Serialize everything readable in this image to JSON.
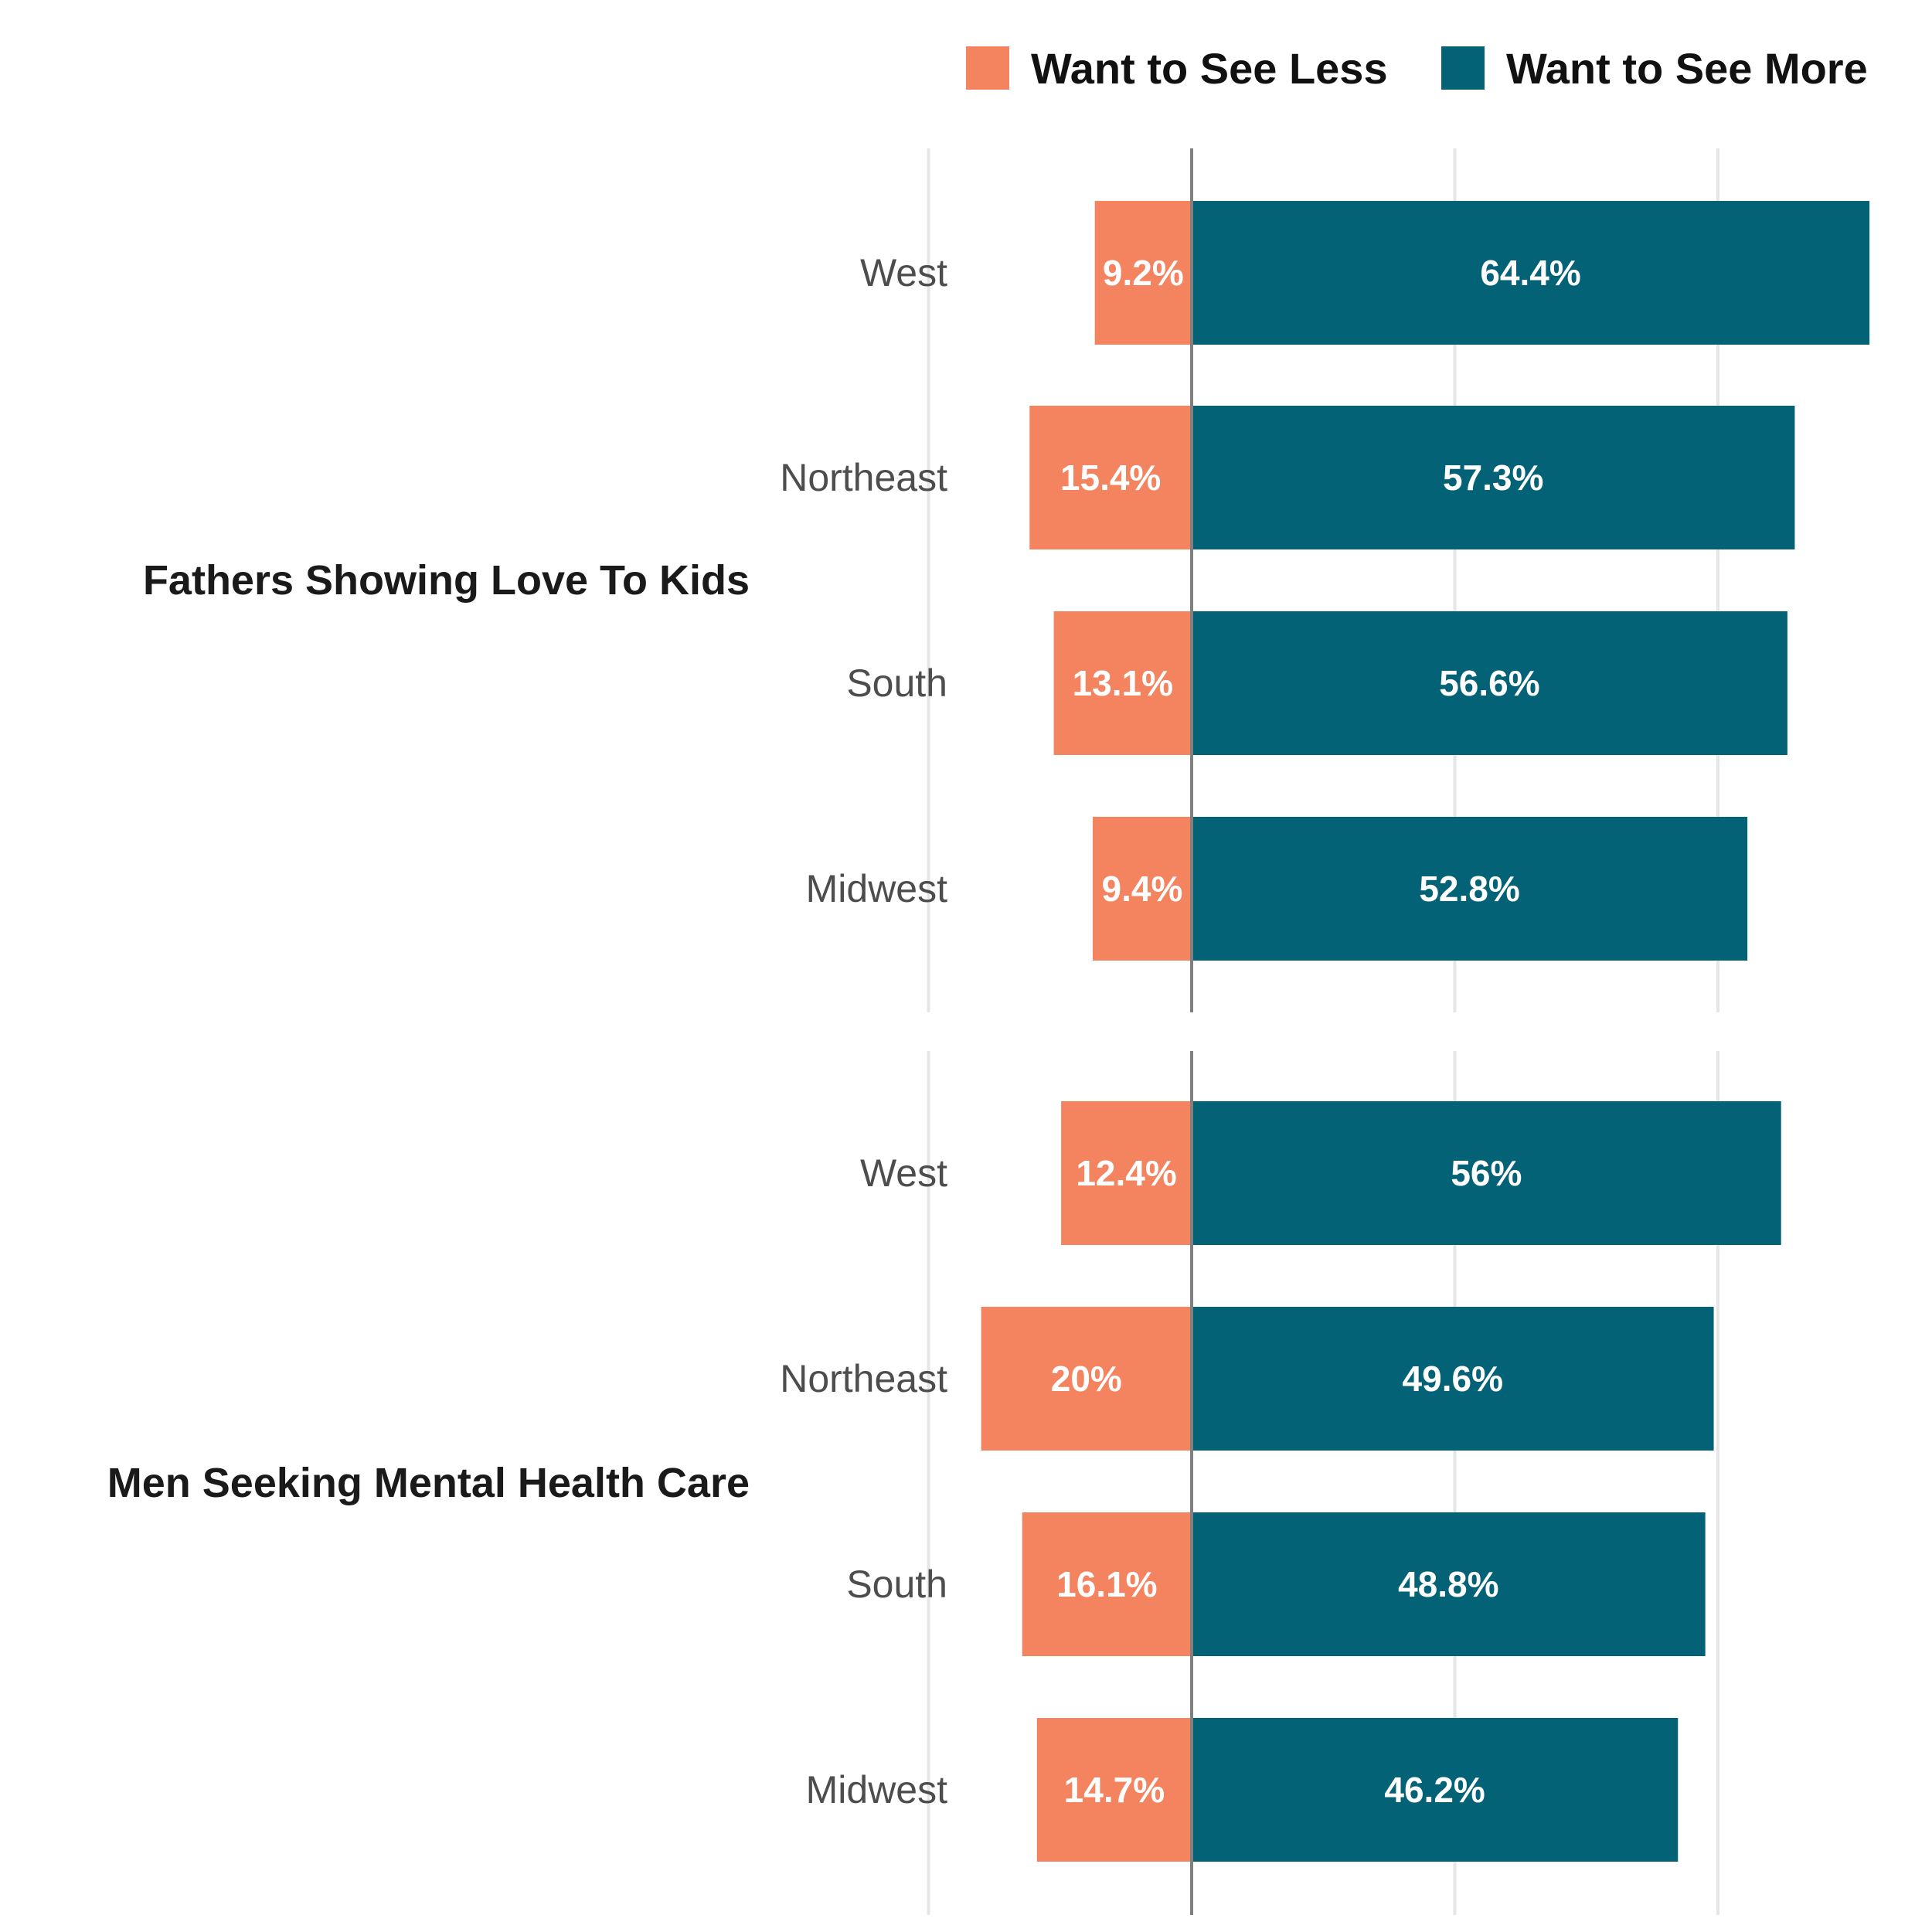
{
  "chart_data": {
    "type": "bar",
    "orientation": "horizontal-diverging",
    "legend": [
      {
        "label": "Want to See Less",
        "color": "#F4845F"
      },
      {
        "label": "Want to See More",
        "color": "#046276"
      }
    ],
    "legend_position": "top-right",
    "xlim": [
      -20,
      65
    ],
    "grid": true,
    "facets": [
      {
        "title": "Fathers Showing Love To Kids",
        "categories": [
          "West",
          "Northeast",
          "South",
          "Midwest"
        ],
        "series": [
          {
            "name": "Want to See Less",
            "values": [
              9.2,
              15.4,
              13.1,
              9.4
            ],
            "labels": [
              "9.2%",
              "15.4%",
              "13.1%",
              "9.4%"
            ]
          },
          {
            "name": "Want to See More",
            "values": [
              64.4,
              57.3,
              56.6,
              52.8
            ],
            "labels": [
              "64.4%",
              "57.3%",
              "56.6%",
              "52.8%"
            ]
          }
        ]
      },
      {
        "title": "Men Seeking Mental Health Care",
        "categories": [
          "West",
          "Northeast",
          "South",
          "Midwest"
        ],
        "series": [
          {
            "name": "Want to See Less",
            "values": [
              12.4,
              20,
              16.1,
              14.7
            ],
            "labels": [
              "12.4%",
              "20%",
              "16.1%",
              "14.7%"
            ]
          },
          {
            "name": "Want to See More",
            "values": [
              56,
              49.6,
              48.8,
              46.2
            ],
            "labels": [
              "56%",
              "49.6%",
              "48.8%",
              "46.2%"
            ]
          }
        ]
      }
    ]
  }
}
